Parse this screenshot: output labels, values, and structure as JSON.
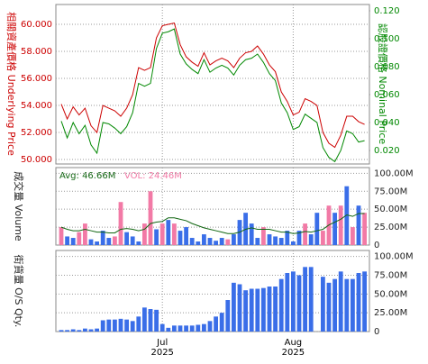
{
  "chart_data": [
    {
      "type": "line",
      "ylabel": "相關資產價格 Underlying Price",
      "y2label": "認股證價格 Nominal Price",
      "categories": [
        null,
        null,
        null,
        null,
        null,
        null,
        null,
        null,
        null,
        null,
        null,
        null,
        null,
        null,
        null,
        null,
        null,
        "Jul 2025",
        null,
        null,
        null,
        null,
        null,
        null,
        null,
        null,
        null,
        null,
        null,
        null,
        null,
        null,
        null,
        null,
        null,
        null,
        null,
        null,
        null,
        "Aug 2025",
        null,
        null,
        null,
        null,
        null,
        null,
        null,
        null,
        null,
        null,
        null,
        null
      ],
      "ylim": [
        49.67,
        61.47
      ],
      "yticks": [
        {
          "value": 50,
          "label": "50.000"
        },
        {
          "value": 52,
          "label": "52.000"
        },
        {
          "value": 54,
          "label": "54.000"
        },
        {
          "value": 56,
          "label": "56.000"
        },
        {
          "value": 58,
          "label": "58.000"
        },
        {
          "value": 60,
          "label": "60.000"
        }
      ],
      "y2lim": [
        0.0103,
        0.1245
      ],
      "y2ticks": [
        {
          "value": 0.02,
          "label": "0.020"
        },
        {
          "value": 0.04,
          "label": "0.040"
        },
        {
          "value": 0.06,
          "label": "0.060"
        },
        {
          "value": 0.08,
          "label": "0.080"
        },
        {
          "value": 0.1,
          "label": "0.100"
        },
        {
          "value": 0.12,
          "label": "0.120"
        }
      ],
      "grid": true,
      "series": [
        {
          "color": "#cc0000",
          "values": [
            54.1,
            53.0,
            53.9,
            53.3,
            53.8,
            52.5,
            52.0,
            54.0,
            53.8,
            53.6,
            53.2,
            53.8,
            54.8,
            56.8,
            56.6,
            56.8,
            59.0,
            59.9,
            60.0,
            60.1,
            58.5,
            57.6,
            57.2,
            56.9,
            57.9,
            57.0,
            57.3,
            57.5,
            57.3,
            56.8,
            57.5,
            57.9,
            58.0,
            58.4,
            57.8,
            57.0,
            56.5,
            55.0,
            54.3,
            53.3,
            53.5,
            54.5,
            54.3,
            54.0,
            52.0,
            51.2,
            50.9,
            51.8,
            53.2,
            53.2,
            52.8,
            52.6
          ]
        },
        {
          "color": "#008800",
          "axis": "y2",
          "values": [
            0.041,
            0.029,
            0.04,
            0.032,
            0.038,
            0.024,
            0.018,
            0.04,
            0.039,
            0.036,
            0.032,
            0.037,
            0.047,
            0.068,
            0.066,
            0.068,
            0.093,
            0.104,
            0.105,
            0.107,
            0.089,
            0.082,
            0.078,
            0.075,
            0.085,
            0.076,
            0.079,
            0.081,
            0.079,
            0.074,
            0.081,
            0.085,
            0.086,
            0.089,
            0.083,
            0.075,
            0.07,
            0.054,
            0.047,
            0.035,
            0.037,
            0.046,
            0.043,
            0.04,
            0.022,
            0.015,
            0.012,
            0.02,
            0.034,
            0.032,
            0.026,
            0.027
          ]
        }
      ]
    },
    {
      "type": "bar",
      "ylabel": "成交量 Volume",
      "avg_label": "Avg: 46.66M",
      "vol_label": "VOL: 24.46M",
      "ylim": [
        0,
        108
      ],
      "yticks": [
        0,
        {
          "value": 25,
          "label": "25.00M"
        },
        {
          "value": 50,
          "label": "50.00M"
        },
        {
          "value": 75,
          "label": "75.00M"
        },
        {
          "value": 100,
          "label": "100.00M"
        }
      ],
      "grid": true,
      "values": [
        25,
        12,
        10,
        18,
        30,
        8,
        5,
        20,
        10,
        12,
        60,
        18,
        12,
        5,
        30,
        75,
        22,
        30,
        35,
        30,
        20,
        25,
        10,
        5,
        15,
        10,
        6,
        10,
        8,
        15,
        35,
        45,
        30,
        10,
        25,
        15,
        12,
        10,
        20,
        5,
        20,
        30,
        15,
        45,
        20,
        55,
        45,
        55,
        82,
        25,
        55,
        45
      ],
      "bar_colors": [
        "#f27aa6",
        "#3a6ee8",
        "#3a6ee8",
        "#f27aa6",
        "#f27aa6",
        "#3a6ee8",
        "#3a6ee8",
        "#3a6ee8",
        "#3a6ee8",
        "#f27aa6",
        "#f27aa6",
        "#3a6ee8",
        "#3a6ee8",
        "#3a6ee8",
        "#f27aa6",
        "#f27aa6",
        "#3a6ee8",
        "#f27aa6",
        "#3a6ee8",
        "#f27aa6",
        "#3a6ee8",
        "#3a6ee8",
        "#3a6ee8",
        "#3a6ee8",
        "#3a6ee8",
        "#3a6ee8",
        "#3a6ee8",
        "#3a6ee8",
        "#f27aa6",
        "#3a6ee8",
        "#3a6ee8",
        "#3a6ee8",
        "#3a6ee8",
        "#3a6ee8",
        "#f27aa6",
        "#3a6ee8",
        "#3a6ee8",
        "#3a6ee8",
        "#3a6ee8",
        "#3a6ee8",
        "#3a6ee8",
        "#f27aa6",
        "#3a6ee8",
        "#3a6ee8",
        "#f27aa6",
        "#f27aa6",
        "#3a6ee8",
        "#f27aa6",
        "#3a6ee8",
        "#f27aa6",
        "#3a6ee8",
        "#f27aa6"
      ],
      "avg_line": {
        "color": "#116611",
        "values": [
          25,
          22,
          20,
          20,
          22,
          20,
          18,
          18,
          17,
          17,
          22,
          23,
          22,
          20,
          22,
          30,
          32,
          33,
          38,
          38,
          36,
          34,
          30,
          27,
          24,
          22,
          20,
          18,
          16,
          16,
          18,
          22,
          24,
          22,
          22,
          22,
          20,
          18,
          18,
          16,
          17,
          19,
          18,
          20,
          22,
          28,
          32,
          36,
          42,
          40,
          44,
          44
        ]
      }
    },
    {
      "type": "bar",
      "ylabel": "街貨量 O/S Qty.",
      "ylim": [
        0,
        108
      ],
      "yticks": [
        0,
        {
          "value": 25,
          "label": "25.00M"
        },
        {
          "value": 50,
          "label": "50.00M"
        },
        {
          "value": 75,
          "label": "75.00M"
        },
        {
          "value": 100,
          "label": "100.00M"
        }
      ],
      "grid": true,
      "color": "#3a6ee8",
      "values": [
        2,
        2,
        3,
        2,
        4,
        3,
        4,
        15,
        16,
        16,
        17,
        16,
        14,
        20,
        32,
        30,
        29,
        10,
        5,
        8,
        8,
        8,
        8,
        9,
        10,
        14,
        20,
        25,
        42,
        65,
        63,
        55,
        57,
        57,
        58,
        60,
        60,
        70,
        78,
        80,
        75,
        86,
        86,
        0,
        73,
        65,
        70,
        80,
        70,
        70,
        78,
        80
      ]
    }
  ]
}
